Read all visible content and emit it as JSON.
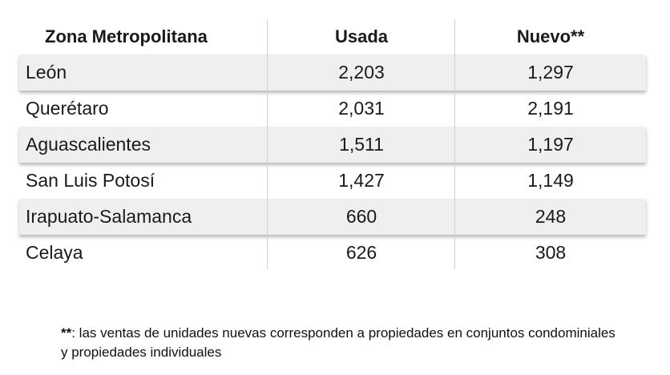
{
  "table": {
    "headers": [
      "Zona Metropolitana",
      "Usada",
      "Nuevo**"
    ],
    "rows": [
      [
        "León",
        "2,203",
        "1,297"
      ],
      [
        "Querétaro",
        "2,031",
        "2,191"
      ],
      [
        "Aguascalientes",
        "1,511",
        "1,197"
      ],
      [
        "San Luis Potosí",
        "1,427",
        "1,149"
      ],
      [
        "Irapuato-Salamanca",
        "660",
        "248"
      ],
      [
        "Celaya",
        "626",
        "308"
      ]
    ]
  },
  "footnote": {
    "marker": "**",
    "text": ": las ventas de unidades nuevas corresponden a propiedades en conjuntos condominiales y propiedades individuales"
  }
}
